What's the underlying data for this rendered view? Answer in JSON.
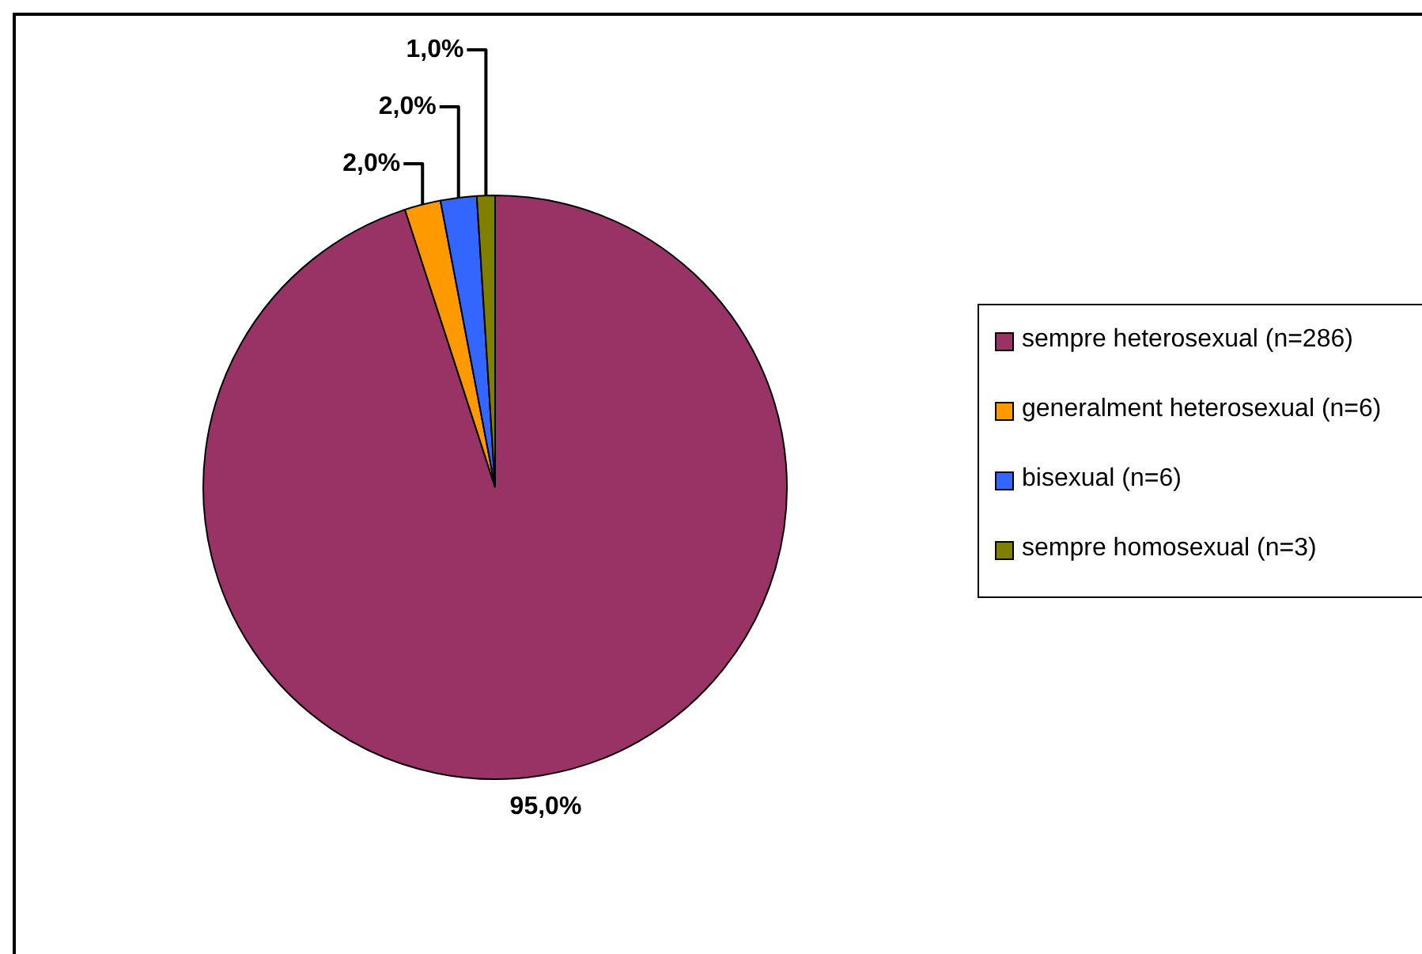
{
  "chart_data": {
    "type": "pie",
    "categories": [
      "sempre heterosexual (n=286)",
      "generalment heterosexual (n=6)",
      "bisexual (n=6)",
      "sempre homosexual (n=3)"
    ],
    "values": [
      95,
      2,
      2,
      1
    ],
    "colors": [
      "#993366",
      "#ff9900",
      "#3366ff",
      "#808000"
    ],
    "value_labels": [
      "95,0%",
      "2,0%",
      "2,0%",
      "1,0%"
    ],
    "legend": "right"
  }
}
